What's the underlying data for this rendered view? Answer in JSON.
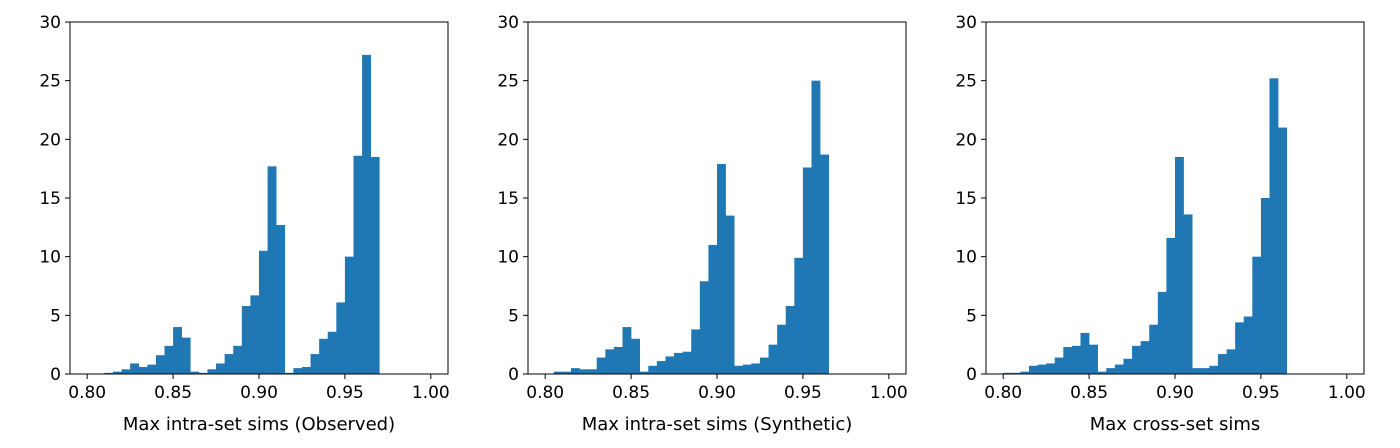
{
  "chart_data": [
    {
      "type": "histogram",
      "xlabel": "Max intra-set sims (Observed)",
      "ylabel": "",
      "xlim": [
        0.79,
        1.01
      ],
      "ylim": [
        0,
        30
      ],
      "xticks": [
        "0.80",
        "0.85",
        "0.90",
        "0.95",
        "1.00"
      ],
      "yticks": [
        "0",
        "5",
        "10",
        "15",
        "20",
        "25",
        "30"
      ],
      "bin_start": 0.8,
      "bin_width": 0.005,
      "color": "#1f77b4",
      "values": [
        0,
        0,
        0.1,
        0.2,
        0.4,
        0.9,
        0.6,
        0.8,
        1.6,
        2.4,
        4.0,
        3.1,
        0.2,
        0.1,
        0.4,
        0.9,
        1.7,
        2.4,
        5.8,
        6.7,
        10.5,
        17.7,
        12.7,
        0.1,
        0.5,
        0.6,
        1.7,
        3.0,
        3.6,
        6.1,
        10.0,
        18.6,
        27.2,
        18.5
      ]
    },
    {
      "type": "histogram",
      "xlabel": "Max intra-set sims (Synthetic)",
      "ylabel": "",
      "xlim": [
        0.79,
        1.01
      ],
      "ylim": [
        0,
        30
      ],
      "xticks": [
        "0.80",
        "0.85",
        "0.90",
        "0.95",
        "1.00"
      ],
      "yticks": [
        "0",
        "5",
        "10",
        "15",
        "20",
        "25",
        "30"
      ],
      "bin_start": 0.8,
      "bin_width": 0.005,
      "color": "#1f77b4",
      "values": [
        0,
        0.2,
        0.2,
        0.5,
        0.4,
        0.4,
        1.4,
        2.1,
        2.3,
        4.0,
        3.0,
        0.2,
        0.7,
        1.1,
        1.5,
        1.8,
        1.9,
        3.8,
        7.9,
        11.0,
        17.9,
        13.5,
        0.7,
        0.8,
        0.9,
        1.4,
        2.5,
        4.2,
        5.8,
        9.9,
        17.6,
        25.0,
        18.7
      ]
    },
    {
      "type": "histogram",
      "xlabel": "Max cross-set sims",
      "ylabel": "",
      "xlim": [
        0.79,
        1.01
      ],
      "ylim": [
        0,
        30
      ],
      "xticks": [
        "0.80",
        "0.85",
        "0.90",
        "0.95",
        "1.00"
      ],
      "yticks": [
        "0",
        "5",
        "10",
        "15",
        "20",
        "25",
        "30"
      ],
      "bin_start": 0.8,
      "bin_width": 0.005,
      "color": "#1f77b4",
      "values": [
        0.1,
        0.1,
        0.2,
        0.7,
        0.8,
        0.9,
        1.4,
        2.3,
        2.4,
        3.5,
        2.5,
        0.2,
        0.5,
        0.8,
        1.3,
        2.4,
        2.8,
        4.2,
        7.0,
        11.6,
        18.5,
        13.6,
        0.5,
        0.5,
        0.7,
        1.7,
        2.1,
        4.4,
        4.9,
        10.0,
        15.0,
        25.2,
        21.0
      ]
    }
  ]
}
